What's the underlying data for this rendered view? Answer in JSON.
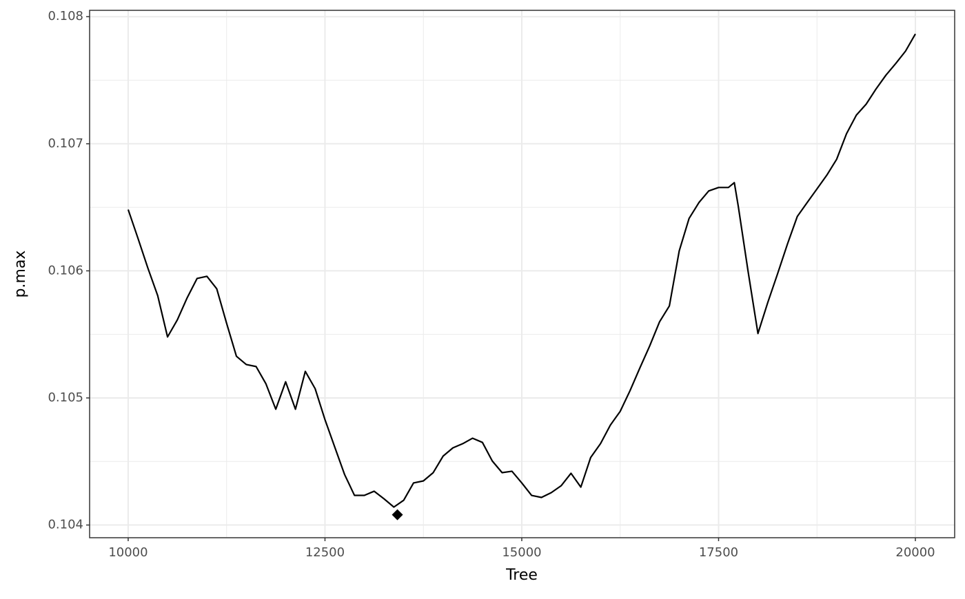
{
  "chart_data": {
    "type": "line",
    "xlabel": "Tree",
    "ylabel": "p.max",
    "series": [
      {
        "color": "#000000",
        "x": [
          10000,
          10125,
          10250,
          10375,
          10500,
          10625,
          10750,
          10875,
          11000,
          11125,
          11250,
          11375,
          11500,
          11625,
          11750,
          11875,
          12000,
          12125,
          12250,
          12375,
          12500,
          12625,
          12750,
          12875,
          13000,
          13125,
          13250,
          13375,
          13500,
          13625,
          13750,
          13875,
          14000,
          14125,
          14250,
          14375,
          14500,
          14625,
          14750,
          14875,
          15000,
          15125,
          15250,
          15375,
          15500,
          15625,
          15750,
          15875,
          16000,
          16125,
          16250,
          16375,
          16500,
          16625,
          16750,
          16875,
          17000,
          17125,
          17250,
          17375,
          17500,
          17625,
          17700,
          17750,
          17875,
          18000,
          18125,
          18250,
          18375,
          18500,
          18625,
          18750,
          18875,
          19000,
          19125,
          19250,
          19375,
          19500,
          19625,
          19750,
          19875,
          20000
        ],
        "values": [
          0.106482,
          0.106255,
          0.106022,
          0.105805,
          0.10548,
          0.105615,
          0.105789,
          0.10594,
          0.105957,
          0.105859,
          0.105588,
          0.105328,
          0.105263,
          0.105247,
          0.105111,
          0.104911,
          0.105127,
          0.104911,
          0.105209,
          0.105073,
          0.104829,
          0.104612,
          0.104396,
          0.104233,
          0.104233,
          0.104266,
          0.104206,
          0.104141,
          0.104195,
          0.104331,
          0.104347,
          0.104412,
          0.104542,
          0.104607,
          0.10464,
          0.104683,
          0.10465,
          0.104504,
          0.104412,
          0.104423,
          0.104331,
          0.104233,
          0.104217,
          0.104255,
          0.104309,
          0.104407,
          0.104298,
          0.104531,
          0.10464,
          0.104786,
          0.104894,
          0.105057,
          0.105236,
          0.105409,
          0.105599,
          0.105724,
          0.106157,
          0.106412,
          0.106537,
          0.106629,
          0.106656,
          0.106656,
          0.106694,
          0.106509,
          0.105995,
          0.105507,
          0.105751,
          0.105978,
          0.106211,
          0.106428,
          0.106537,
          0.106645,
          0.106753,
          0.106878,
          0.107079,
          0.107225,
          0.107312,
          0.107431,
          0.107539,
          0.107631,
          0.107729,
          0.107864
        ]
      }
    ],
    "highlight": {
      "x": 13420,
      "y": 0.104081,
      "color": "#000000"
    },
    "xlim": [
      9510,
      20499
    ],
    "ylim": [
      0.1039,
      0.10805
    ],
    "xticks": [
      10000,
      12500,
      15000,
      17500,
      20000
    ],
    "yticks": [
      0.104,
      0.105,
      0.106,
      0.107,
      0.108
    ],
    "grid": true
  }
}
